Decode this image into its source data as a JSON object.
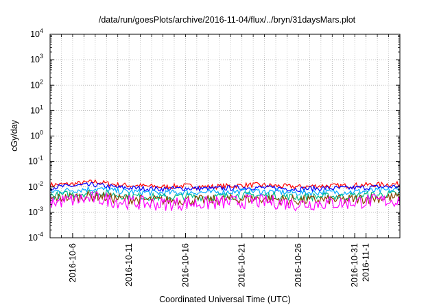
{
  "chart_data": {
    "type": "line",
    "title": "/data/run/goesPlots/archive/2016-11-04/flux/../bryn/31daysMars.plot",
    "xlabel": "Coordinated Universal Time (UTC)",
    "ylabel": "cGy/day",
    "yscale": "log",
    "ylim": [
      0.0001,
      10000
    ],
    "y_ticks": [
      {
        "value": 0.0001,
        "base": "10",
        "exp": "-4"
      },
      {
        "value": 0.001,
        "base": "10",
        "exp": "-3"
      },
      {
        "value": 0.01,
        "base": "10",
        "exp": "-2"
      },
      {
        "value": 0.1,
        "base": "10",
        "exp": "-1"
      },
      {
        "value": 1,
        "base": "10",
        "exp": "0"
      },
      {
        "value": 10,
        "base": "10",
        "exp": "1"
      },
      {
        "value": 100,
        "base": "10",
        "exp": "2"
      },
      {
        "value": 1000,
        "base": "10",
        "exp": "3"
      },
      {
        "value": 10000,
        "base": "10",
        "exp": "4"
      }
    ],
    "xlim": [
      "2016-10-04",
      "2016-11-04"
    ],
    "x_ticks": [
      "2016-10-6",
      "2016-10-11",
      "2016-10-16",
      "2016-10-21",
      "2016-10-26",
      "2016-10-31",
      "2016-11-1"
    ],
    "x_tick_dates": [
      "2016-10-06",
      "2016-10-11",
      "2016-10-16",
      "2016-10-21",
      "2016-10-26",
      "2016-10-31",
      "2016-11-01"
    ],
    "grid": true,
    "series": [
      {
        "color": "#ff0000",
        "x": [
          "2016-10-04",
          "2016-10-06",
          "2016-10-08",
          "2016-10-10",
          "2016-10-12",
          "2016-10-14",
          "2016-10-16",
          "2016-10-18",
          "2016-10-20",
          "2016-10-22",
          "2016-10-24",
          "2016-10-26",
          "2016-10-28",
          "2016-10-30",
          "2016-11-01",
          "2016-11-04"
        ],
        "y": [
          0.012,
          0.013,
          0.016,
          0.012,
          0.011,
          0.01,
          0.011,
          0.01,
          0.011,
          0.012,
          0.011,
          0.01,
          0.011,
          0.011,
          0.012,
          0.013
        ]
      },
      {
        "color": "#0000ff",
        "x": [
          "2016-10-04",
          "2016-10-06",
          "2016-10-08",
          "2016-10-10",
          "2016-10-12",
          "2016-10-14",
          "2016-10-16",
          "2016-10-18",
          "2016-10-20",
          "2016-10-22",
          "2016-10-24",
          "2016-10-26",
          "2016-10-28",
          "2016-10-30",
          "2016-11-01",
          "2016-11-04"
        ],
        "y": [
          0.0095,
          0.011,
          0.012,
          0.0095,
          0.0088,
          0.0082,
          0.0088,
          0.0085,
          0.009,
          0.0095,
          0.009,
          0.0082,
          0.0088,
          0.0088,
          0.0095,
          0.0105
        ]
      },
      {
        "color": "#00aaff",
        "x": [
          "2016-10-04",
          "2016-10-06",
          "2016-10-08",
          "2016-10-10",
          "2016-10-12",
          "2016-10-14",
          "2016-10-16",
          "2016-10-18",
          "2016-10-20",
          "2016-10-22",
          "2016-10-24",
          "2016-10-26",
          "2016-10-28",
          "2016-10-30",
          "2016-11-01",
          "2016-11-04"
        ],
        "y": [
          0.0065,
          0.0075,
          0.0085,
          0.0068,
          0.0062,
          0.0058,
          0.0062,
          0.006,
          0.0064,
          0.0068,
          0.0064,
          0.0058,
          0.0062,
          0.0062,
          0.0068,
          0.0075
        ]
      },
      {
        "color": "#00bb88",
        "x": [
          "2016-10-04",
          "2016-10-06",
          "2016-10-08",
          "2016-10-10",
          "2016-10-12",
          "2016-10-14",
          "2016-10-16",
          "2016-10-18",
          "2016-10-20",
          "2016-10-22",
          "2016-10-24",
          "2016-10-26",
          "2016-10-28",
          "2016-10-30",
          "2016-11-01",
          "2016-11-04"
        ],
        "y": [
          0.0045,
          0.0052,
          0.006,
          0.0047,
          0.0042,
          0.0039,
          0.0042,
          0.004,
          0.0044,
          0.0047,
          0.0044,
          0.0039,
          0.0042,
          0.0042,
          0.0047,
          0.0052
        ]
      },
      {
        "color": "#884400",
        "x": [
          "2016-10-04",
          "2016-10-06",
          "2016-10-08",
          "2016-10-10",
          "2016-10-12",
          "2016-10-14",
          "2016-10-16",
          "2016-10-18",
          "2016-10-20",
          "2016-10-22",
          "2016-10-24",
          "2016-10-26",
          "2016-10-28",
          "2016-10-30",
          "2016-11-01",
          "2016-11-04"
        ],
        "y": [
          0.0034,
          0.0039,
          0.0045,
          0.0035,
          0.0031,
          0.0029,
          0.0031,
          0.003,
          0.0033,
          0.0035,
          0.0033,
          0.0029,
          0.0031,
          0.0031,
          0.0035,
          0.0039
        ]
      },
      {
        "color": "#ff00ff",
        "x": [
          "2016-10-04",
          "2016-10-06",
          "2016-10-08",
          "2016-10-10",
          "2016-10-12",
          "2016-10-14",
          "2016-10-16",
          "2016-10-18",
          "2016-10-20",
          "2016-10-22",
          "2016-10-24",
          "2016-10-26",
          "2016-10-28",
          "2016-10-30",
          "2016-11-01",
          "2016-11-04"
        ],
        "y": [
          0.0025,
          0.003,
          0.0036,
          0.0027,
          0.0023,
          0.0021,
          0.0023,
          0.0022,
          0.0025,
          0.0027,
          0.0025,
          0.0021,
          0.0023,
          0.0023,
          0.0027,
          0.003
        ]
      }
    ]
  }
}
